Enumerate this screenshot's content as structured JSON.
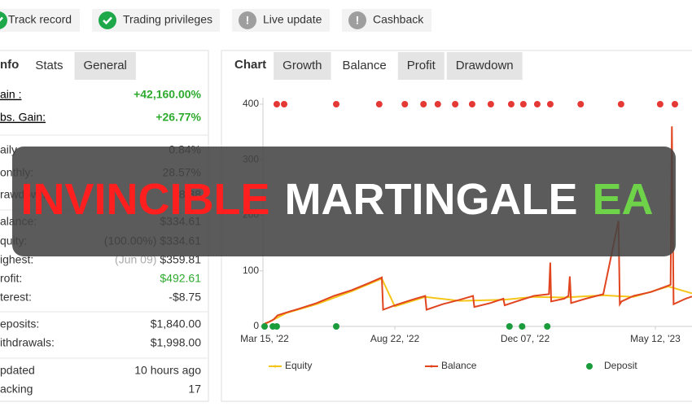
{
  "badges": [
    {
      "label": "Track record",
      "status": "ok"
    },
    {
      "label": "Trading privileges",
      "status": "ok"
    },
    {
      "label": "Live update",
      "status": "info"
    },
    {
      "label": "Cashback",
      "status": "info"
    }
  ],
  "stats_panel": {
    "heading": "nfo",
    "tabs": [
      "Stats",
      "General"
    ],
    "active_tab": 0,
    "groups": [
      [
        {
          "label": "ain :",
          "value": "+42,160.00%",
          "color": "#2eaa2e"
        },
        {
          "label": "bs. Gain:",
          "value": "+26.77%",
          "color": "#2eaa2e"
        }
      ],
      [
        {
          "label": "aily",
          "value": "0.84%"
        },
        {
          "label": "onthly:",
          "value": "28.57%"
        },
        {
          "label": "rawdown",
          "value": "98.38"
        }
      ],
      [
        {
          "label": "alance:",
          "value": "$334.61"
        },
        {
          "label": "quity:",
          "note": "(100.00%)",
          "value": "$334.61"
        },
        {
          "label": "ighest:",
          "note": "(Jun 09)",
          "value": "$359.81"
        },
        {
          "label": "rofit:",
          "value": "$492.61",
          "color": "#2eaa2e"
        },
        {
          "label": "terest:",
          "value": "-$8.75"
        }
      ],
      [
        {
          "label": "eposits:",
          "value": "$1,840.00"
        },
        {
          "label": "ithdrawals:",
          "value": "$1,998.00"
        }
      ],
      [
        {
          "label": "pdated",
          "value": "10 hours ago"
        },
        {
          "label": "acking",
          "value": "17"
        }
      ]
    ]
  },
  "chart_panel": {
    "heading": "Chart",
    "tabs": [
      "Growth",
      "Balance",
      "Profit",
      "Drawdown"
    ],
    "active_tab": 1
  },
  "chart_data": {
    "type": "line",
    "xlim": [
      0,
      100
    ],
    "ylim": [
      0,
      400
    ],
    "xticks": [
      {
        "value": 0,
        "label": "Mar 15, '22"
      },
      {
        "value": 30,
        "label": "Aug 22, '22"
      },
      {
        "value": 60,
        "label": "Dec 07, '22"
      },
      {
        "value": 90,
        "label": "May 12, '23"
      }
    ],
    "yticks": [
      0,
      100,
      200,
      300,
      400
    ],
    "series": [
      {
        "name": "Equity",
        "type": "line",
        "color": "#f5c518",
        "x": [
          0,
          5,
          12,
          20,
          27,
          30,
          37,
          45,
          55,
          62,
          69,
          78,
          85,
          93,
          100
        ],
        "values": [
          4,
          24,
          40,
          63,
          86,
          36,
          53,
          46,
          48,
          53,
          52,
          56,
          53,
          72,
          56
        ]
      },
      {
        "name": "Balance",
        "type": "line",
        "color": "#e0451f",
        "x": [
          0,
          1,
          2,
          3,
          5,
          8,
          12,
          16,
          20,
          24,
          27,
          27.3,
          30,
          34,
          37,
          37.3,
          41,
          45,
          48,
          48.3,
          52,
          55,
          55.3,
          58,
          62,
          65.5,
          65.8,
          66,
          69,
          70,
          70.3,
          70.6,
          74,
          78,
          81.5,
          81.8,
          82.2,
          85,
          89,
          93.5,
          93.8,
          94.2,
          97,
          100
        ],
        "values": [
          5,
          8,
          12,
          20,
          25,
          32,
          42,
          55,
          65,
          78,
          88,
          30,
          38,
          48,
          55,
          30,
          40,
          48,
          55,
          35,
          42,
          50,
          38,
          45,
          55,
          58,
          115,
          45,
          50,
          55,
          90,
          42,
          50,
          58,
          190,
          40,
          45,
          55,
          62,
          75,
          360,
          40,
          50,
          58
        ]
      },
      {
        "name": "Deposit",
        "type": "scatter",
        "color": "#1a9c3c",
        "x": [
          0,
          1.9,
          2.8,
          16.5,
          56.4,
          59.3,
          65.1
        ],
        "values": [
          0,
          0,
          0,
          0,
          0,
          0,
          0
        ]
      },
      {
        "type": "scatter",
        "color": "#e53935",
        "x": [
          2.8,
          4.5,
          16.5,
          26.4,
          32.3,
          36.6,
          39.9,
          43.9,
          47.8,
          52.1,
          56.8,
          59.6,
          62.8,
          65.8,
          72.8,
          82.1,
          91.1,
          94.5
        ],
        "values": [
          400,
          400,
          400,
          400,
          400,
          400,
          400,
          400,
          400,
          400,
          400,
          400,
          400,
          400,
          400,
          400,
          400,
          400
        ]
      }
    ]
  },
  "banner": {
    "words": [
      {
        "text": "INVINCIBLE",
        "color": "#ff1f1f"
      },
      {
        "text": "MARTINGALE",
        "color": "#ffffff"
      },
      {
        "text": "EA",
        "color": "#6fd34a"
      }
    ]
  }
}
